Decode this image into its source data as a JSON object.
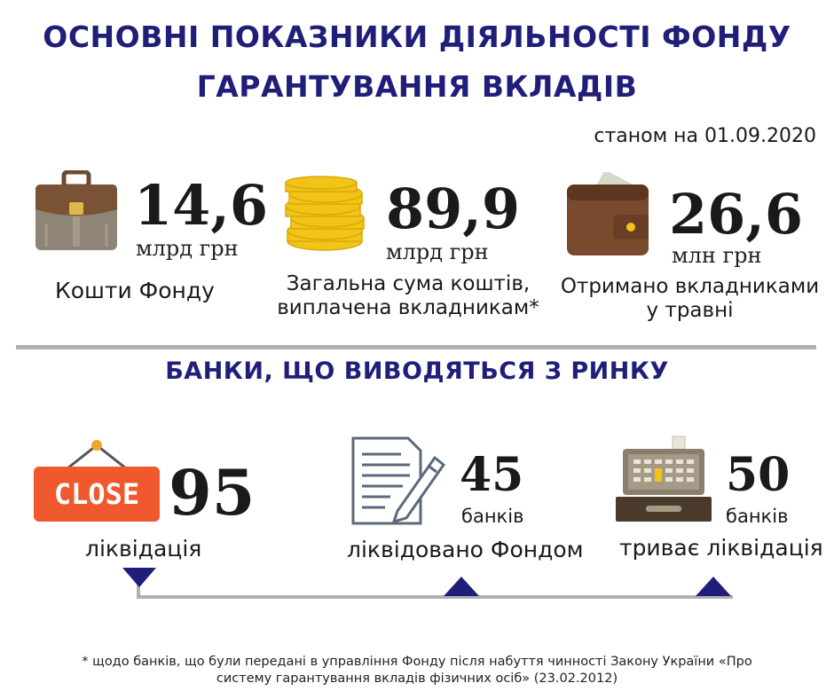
{
  "header": {
    "title_line1": "ОСНОВНІ ПОКАЗНИКИ ДІЯЛЬНОСТІ ФОНДУ",
    "title_line2": "ГАРАНТУВАННЯ ВКЛАДІВ",
    "date_note": "станом на 01.09.2020"
  },
  "stats": [
    {
      "value": "14,6",
      "unit": "млрд грн",
      "caption_line1": "Кошти Фонду",
      "caption_line2": "",
      "icon": "briefcase-icon"
    },
    {
      "value": "89,9",
      "unit": "млрд грн",
      "caption_line1": "Загальна сума коштів,",
      "caption_line2": "виплачена вкладникам*",
      "icon": "coins-icon"
    },
    {
      "value": "26,6",
      "unit": "млн грн",
      "caption_line1": "Отримано вкладниками",
      "caption_line2": "у травні",
      "icon": "wallet-icon"
    }
  ],
  "banks_section": {
    "title": "БАНКИ, ЩО ВИВОДЯТЬСЯ З РИНКУ",
    "close_sign_text": "CLOSE",
    "items": [
      {
        "value": "95",
        "unit": "",
        "caption": "ліквідація",
        "icon": "close-sign-icon"
      },
      {
        "value": "45",
        "unit": "банків",
        "caption": "ліквідовано Фондом",
        "icon": "document-pen-icon"
      },
      {
        "value": "50",
        "unit": "банків",
        "caption": "триває ліквідація",
        "icon": "cash-register-icon"
      }
    ]
  },
  "footnote": {
    "line1": "* щодо банків, що були передані в управління Фонду після набуття чинності Закону України «Про",
    "line2": "систему гарантування вкладів фізичних осіб» (23.02.2012)"
  },
  "colors": {
    "title": "#1f1f7a",
    "divider": "#b0b0b0",
    "close_sign": "#f0582e",
    "gold": "#f2c417",
    "briefcase": "#8a8070",
    "wallet": "#7a4a2e",
    "timeline_marker": "#1f1f7a"
  }
}
